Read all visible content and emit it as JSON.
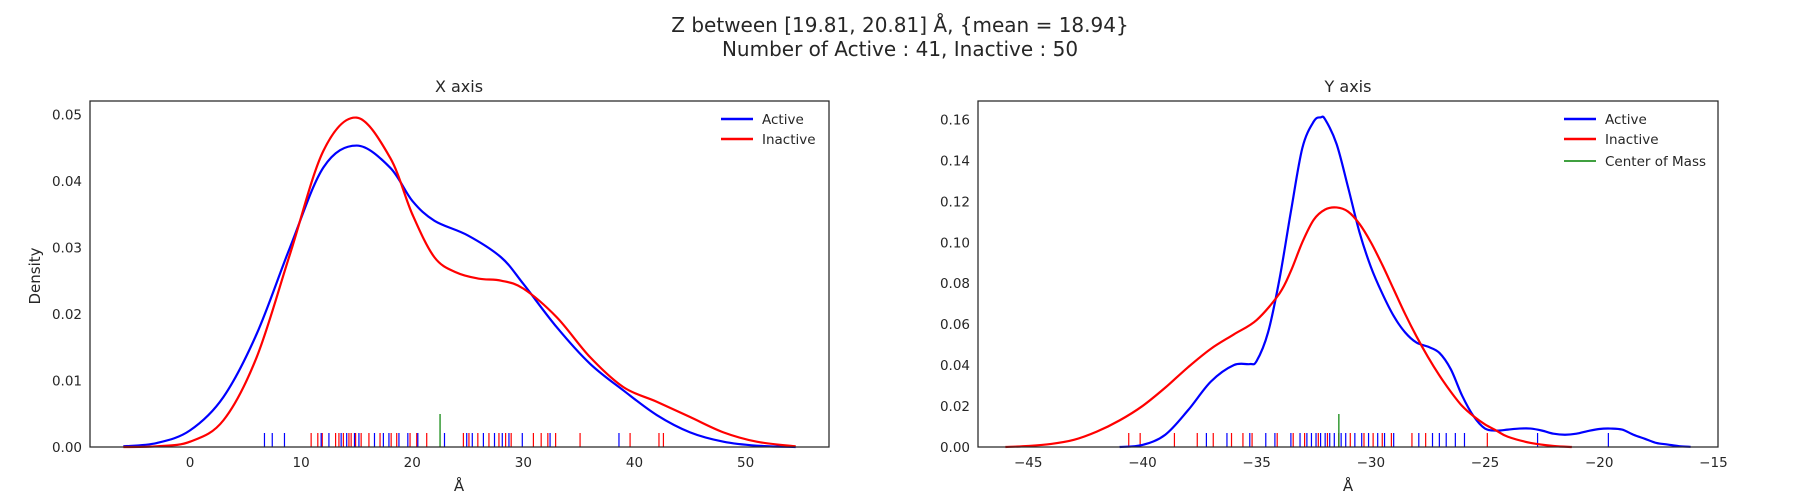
{
  "figure": {
    "title_line1": "Z between [19.81, 20.81] Å, {mean = 18.94}",
    "title_line2": "Number of Active : 41, Inactive : 50"
  },
  "colors": {
    "active": "#0000ff",
    "inactive": "#ff0000",
    "center_of_mass": "#008000"
  },
  "chart_data": [
    {
      "type": "line",
      "title": "X axis",
      "xlabel": "Å",
      "ylabel": "Density",
      "xlim": [
        -9,
        57.5
      ],
      "ylim": [
        0,
        0.052
      ],
      "xticks": [
        0,
        10,
        20,
        30,
        40,
        50
      ],
      "yticks": [
        0.0,
        0.01,
        0.02,
        0.03,
        0.04,
        0.05
      ],
      "ytick_decimals": 2,
      "grid": false,
      "legend_position": "top-right",
      "series": [
        {
          "name": "Active",
          "color": "#0000ff",
          "x": [
            -6,
            -3,
            0,
            3,
            6,
            9,
            12,
            15,
            18,
            20,
            22,
            25,
            28,
            30,
            33,
            36,
            39,
            42,
            45,
            48,
            51,
            54.5
          ],
          "y": [
            0.0001,
            0.0006,
            0.0025,
            0.0075,
            0.017,
            0.03,
            0.042,
            0.0453,
            0.042,
            0.037,
            0.034,
            0.0318,
            0.0285,
            0.0245,
            0.018,
            0.0125,
            0.0085,
            0.0048,
            0.0022,
            0.0008,
            0.0002,
            0.0
          ]
        },
        {
          "name": "Inactive",
          "color": "#ff0000",
          "x": [
            -6,
            -3,
            0,
            3,
            6,
            9,
            12,
            15,
            18,
            20,
            22,
            24,
            26,
            28,
            30,
            33,
            36,
            39,
            42,
            45,
            48,
            51,
            54.5
          ],
          "y": [
            0.0,
            0.0001,
            0.0008,
            0.004,
            0.0135,
            0.029,
            0.0445,
            0.0495,
            0.0435,
            0.035,
            0.0285,
            0.0262,
            0.0253,
            0.025,
            0.0238,
            0.0195,
            0.0135,
            0.009,
            0.0068,
            0.0045,
            0.0022,
            0.0008,
            0.0001
          ]
        }
      ],
      "rug": {
        "active": [
          6.7,
          7.4,
          8.5,
          11.8,
          12.5,
          13.6,
          14.1,
          14.8,
          15.2,
          16.6,
          17.4,
          17.9,
          18.8,
          19.6,
          20.5,
          22.9,
          24.9,
          25.4,
          26.4,
          27.4,
          28.1,
          28.7,
          29.9,
          32.4,
          38.6
        ],
        "inactive": [
          10.9,
          11.5,
          11.9,
          13.1,
          13.4,
          13.8,
          14.3,
          14.5,
          14.9,
          15.4,
          16.1,
          17.1,
          18.1,
          18.6,
          19.8,
          20.4,
          21.3,
          24.6,
          25.1,
          25.9,
          26.9,
          27.8,
          28.4,
          28.9,
          30.9,
          31.6,
          32.2,
          32.9,
          35.1,
          39.6,
          42.2,
          42.6
        ],
        "center_of_mass": [
          22.5
        ]
      }
    },
    {
      "type": "line",
      "title": "Y axis",
      "xlabel": "Å",
      "ylabel": "",
      "xlim": [
        -47.2,
        -14.8
      ],
      "ylim": [
        0,
        0.169
      ],
      "xticks": [
        -45,
        -40,
        -35,
        -30,
        -25,
        -20,
        -15
      ],
      "yticks": [
        0.0,
        0.02,
        0.04,
        0.06,
        0.08,
        0.1,
        0.12,
        0.14,
        0.16
      ],
      "ytick_decimals": 2,
      "grid": false,
      "legend_position": "top-right",
      "series": [
        {
          "name": "Active",
          "color": "#0000ff",
          "x": [
            -41,
            -40,
            -39,
            -38,
            -37,
            -36,
            -35.3,
            -35,
            -34.5,
            -34,
            -33.5,
            -33,
            -32.5,
            -32.2,
            -32,
            -31.5,
            -31,
            -30.5,
            -30,
            -29.5,
            -29,
            -28.5,
            -28,
            -27.5,
            -27,
            -26.5,
            -26,
            -25.5,
            -25,
            -24.5,
            -24,
            -23.5,
            -23,
            -22.5,
            -22,
            -21.5,
            -21,
            -20.5,
            -20,
            -19.5,
            -19,
            -18.5,
            -18,
            -17.5,
            -17,
            -16.5,
            -16
          ],
          "y": [
            0.0,
            0.001,
            0.006,
            0.018,
            0.032,
            0.04,
            0.0405,
            0.042,
            0.056,
            0.082,
            0.115,
            0.146,
            0.159,
            0.161,
            0.16,
            0.148,
            0.127,
            0.105,
            0.088,
            0.075,
            0.064,
            0.056,
            0.051,
            0.049,
            0.046,
            0.038,
            0.025,
            0.015,
            0.009,
            0.008,
            0.0085,
            0.009,
            0.009,
            0.008,
            0.0065,
            0.006,
            0.0065,
            0.0078,
            0.0088,
            0.009,
            0.0085,
            0.006,
            0.004,
            0.002,
            0.0012,
            0.0004,
            0.0001
          ]
        },
        {
          "name": "Inactive",
          "color": "#ff0000",
          "x": [
            -46,
            -45,
            -44,
            -43,
            -42,
            -41,
            -40,
            -39,
            -38,
            -37,
            -36,
            -35,
            -34,
            -33.5,
            -33,
            -32.5,
            -32,
            -31.5,
            -31,
            -30.5,
            -30,
            -29.5,
            -29,
            -28.5,
            -28,
            -27.5,
            -27,
            -26.5,
            -26,
            -25.5,
            -25,
            -24.5,
            -24,
            -23,
            -22,
            -21.2
          ],
          "y": [
            0.0,
            0.0005,
            0.0015,
            0.0035,
            0.0075,
            0.013,
            0.02,
            0.029,
            0.039,
            0.048,
            0.055,
            0.062,
            0.075,
            0.086,
            0.1,
            0.111,
            0.116,
            0.117,
            0.115,
            0.109,
            0.1,
            0.089,
            0.077,
            0.065,
            0.054,
            0.044,
            0.035,
            0.027,
            0.02,
            0.015,
            0.011,
            0.008,
            0.005,
            0.002,
            0.0005,
            0.0
          ]
        }
      ],
      "rug": {
        "active": [
          -37.2,
          -36.3,
          -35.3,
          -34.6,
          -34.2,
          -33.5,
          -33.1,
          -32.8,
          -32.6,
          -32.4,
          -32.2,
          -32.0,
          -31.8,
          -31.6,
          -31.3,
          -31.1,
          -30.7,
          -30.4,
          -30.1,
          -29.7,
          -29.4,
          -29.0,
          -27.9,
          -27.3,
          -27.0,
          -26.7,
          -26.3,
          -25.9,
          -22.7,
          -19.6
        ],
        "inactive": [
          -40.6,
          -40.1,
          -38.6,
          -37.6,
          -36.9,
          -36.1,
          -35.6,
          -35.2,
          -34.1,
          -33.4,
          -32.9,
          -32.3,
          -31.9,
          -31.4,
          -30.9,
          -30.3,
          -29.9,
          -29.5,
          -29.1,
          -28.2,
          -27.6,
          -24.9
        ],
        "center_of_mass": [
          -31.4
        ]
      },
      "legend_extra": {
        "name": "Center of Mass",
        "color": "#008000"
      }
    }
  ]
}
